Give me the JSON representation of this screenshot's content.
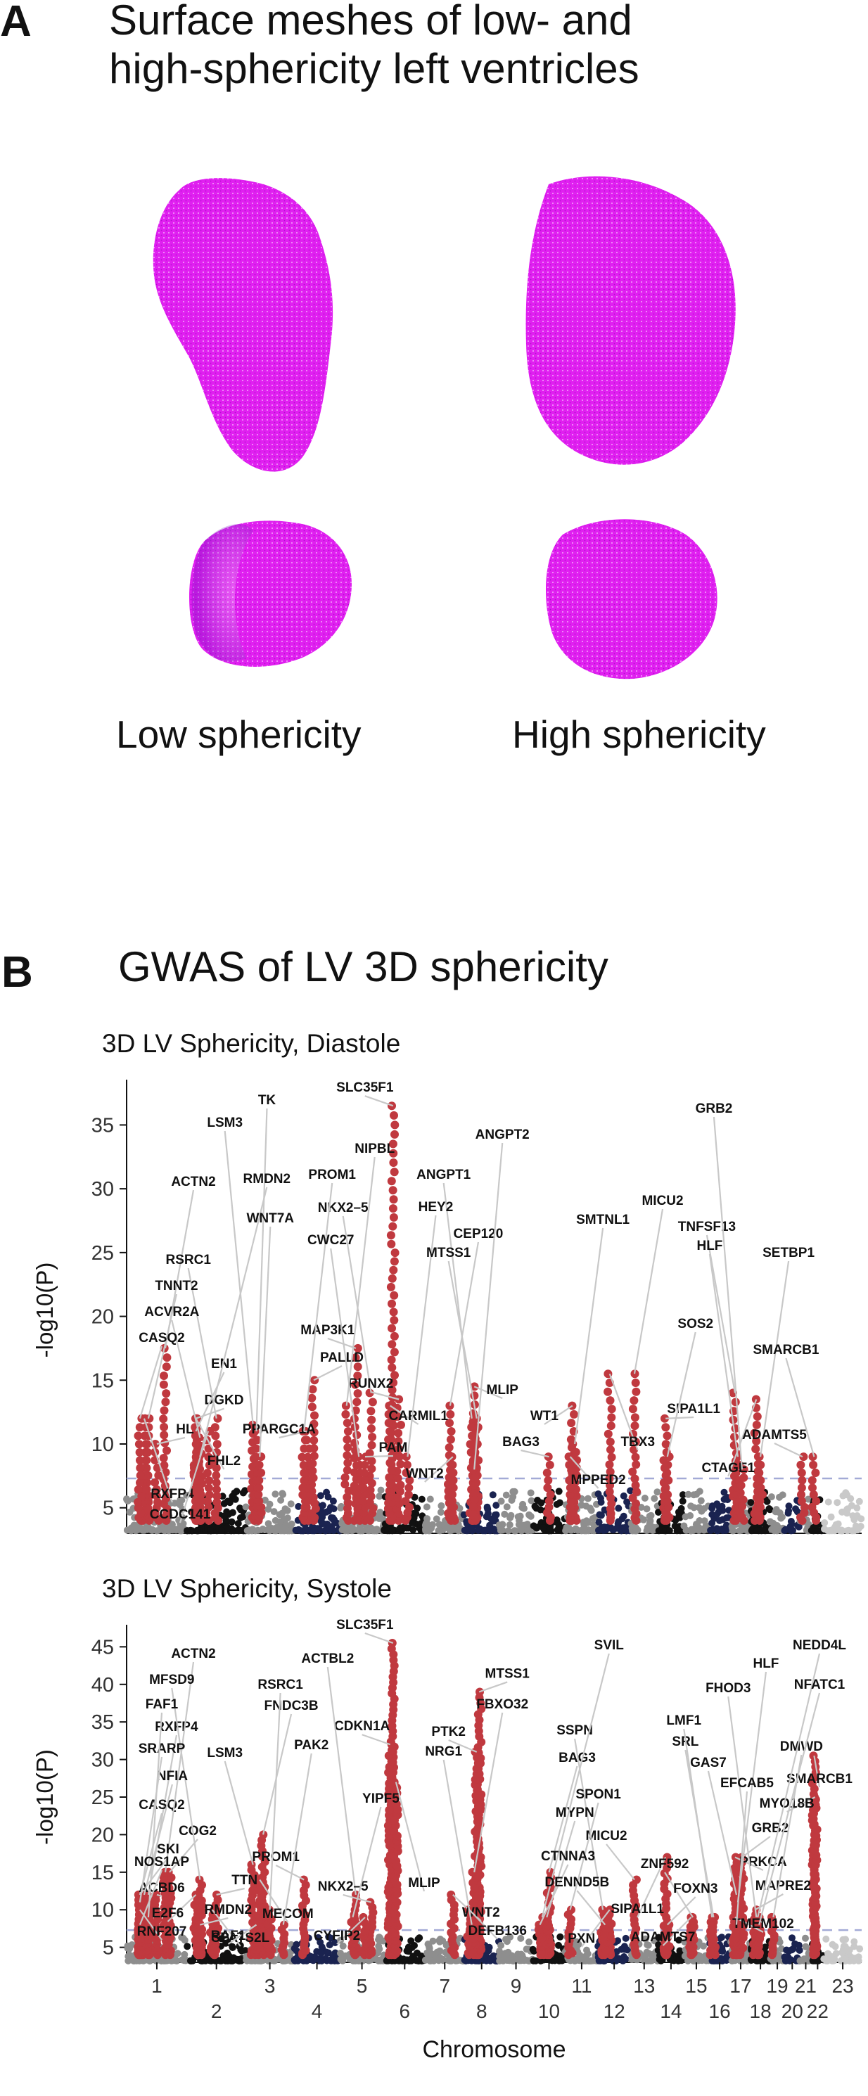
{
  "panel_a": {
    "letter": "A",
    "title_line1": "Surface meshes of low- and",
    "title_line2": "high-sphericity left ventricles",
    "caption_low": "Low sphericity",
    "caption_high": "High sphericity",
    "mesh_color": "#e020f0"
  },
  "panel_b": {
    "letter": "B",
    "title": "GWAS of LV 3D sphericity"
  },
  "colors": {
    "gray": "#8e8e8e",
    "black": "#111111",
    "navy": "#1a2350",
    "lightgray": "#c9c9c9",
    "hit": "#c0393f",
    "threshold": "#a3aad6",
    "leader": "#c8c8c8"
  },
  "chart_data": [
    {
      "type": "scatter",
      "subtype": "manhattan",
      "title": "3D LV Sphericity, Diastole",
      "xlabel": "",
      "ylabel": "-log10(P)",
      "ylim": [
        3,
        38
      ],
      "yticks": [
        5,
        10,
        15,
        20,
        25,
        30,
        35
      ],
      "threshold": 7.3,
      "chromosome_tick_labels": [],
      "peaks": [
        {
          "gene": "SLC35F1",
          "chr": 6.1,
          "logp": 36.5
        },
        {
          "gene": "DGKD",
          "chr": 2.0,
          "logp": 12.0
        },
        {
          "gene": "MAP3K1",
          "chr": 5.3,
          "logp": 17.5
        },
        {
          "gene": "ACTN2",
          "chr": 1.7,
          "logp": 17.5
        },
        {
          "gene": "NKX2–5",
          "chr": 5.8,
          "logp": 14.0
        },
        {
          "gene": "CEP120",
          "chr": 7.7,
          "logp": 13.0
        },
        {
          "gene": "RSRC1",
          "chr": 2.5,
          "logp": 12.0
        },
        {
          "gene": "TNNT2",
          "chr": 1.3,
          "logp": 12.0
        },
        {
          "gene": "ACVR2A",
          "chr": 2.1,
          "logp": 10.5
        },
        {
          "gene": "PALLD",
          "chr": 4.4,
          "logp": 15.0
        },
        {
          "gene": "RUNX2",
          "chr": 6.3,
          "logp": 13.5
        },
        {
          "gene": "MLIP",
          "chr": 8.2,
          "logp": 14.5
        },
        {
          "gene": "WT1",
          "chr": 11.1,
          "logp": 13.0
        },
        {
          "gene": "TBX3",
          "chr": 12.3,
          "logp": 15.5
        },
        {
          "gene": "CTAGE1",
          "chr": 18.2,
          "logp": 13.5
        },
        {
          "gene": "RXFP4",
          "chr": 1.2,
          "logp": 12.0
        },
        {
          "gene": "LSM3",
          "chr": 3.0,
          "logp": 11.5
        },
        {
          "gene": "NIPBL",
          "chr": 5.0,
          "logp": 13.0
        },
        {
          "gene": "ANGPT1",
          "chr": 8.1,
          "logp": 12.0
        },
        {
          "gene": "MICU2",
          "chr": 13.0,
          "logp": 15.5
        },
        {
          "gene": "TNFSF13",
          "chr": 17.1,
          "logp": 14.0
        },
        {
          "gene": "SETBP1",
          "chr": 18.5,
          "logp": 9.0
        },
        {
          "gene": "CASQ2",
          "chr": 1.1,
          "logp": 12.0
        },
        {
          "gene": "EN1",
          "chr": 2.0,
          "logp": 11.0
        },
        {
          "gene": "PPARGC1A",
          "chr": 4.2,
          "logp": 11.0
        },
        {
          "gene": "CARMIL1",
          "chr": 6.0,
          "logp": 13.0
        },
        {
          "gene": "BAG3",
          "chr": 10.5,
          "logp": 9.0
        },
        {
          "gene": "SIPA1L1",
          "chr": 14.2,
          "logp": 12.0
        },
        {
          "gene": "ADAMTS5",
          "chr": 21.1,
          "logp": 9.0
        },
        {
          "gene": "FHL2",
          "chr": 2.0,
          "logp": 12.0
        },
        {
          "gene": "TK",
          "chr": 3.1,
          "logp": 11.0
        },
        {
          "gene": "PROM1",
          "chr": 4.1,
          "logp": 11.0
        },
        {
          "gene": "CWC27",
          "chr": 5.4,
          "logp": 9.0
        },
        {
          "gene": "HEY2",
          "chr": 6.6,
          "logp": 9.0
        },
        {
          "gene": "MTSS1",
          "chr": 8.3,
          "logp": 12.0
        },
        {
          "gene": "SMTNL1",
          "chr": 11.2,
          "logp": 10.0
        },
        {
          "gene": "HLF",
          "chr": 17.3,
          "logp": 9.0
        },
        {
          "gene": "HL",
          "chr": 1.5,
          "logp": 10.0
        },
        {
          "gene": "CCDC141",
          "chr": 2.3,
          "logp": 11.0
        },
        {
          "gene": "SOS2",
          "chr": 14.3,
          "logp": 9.0
        },
        {
          "gene": "SMARCB1",
          "chr": 22.1,
          "logp": 9.0
        },
        {
          "gene": "RMDN2",
          "chr": 2.1,
          "logp": 9.0
        },
        {
          "gene": "WNT7A",
          "chr": 3.2,
          "logp": 9.0
        },
        {
          "gene": "PAM",
          "chr": 5.6,
          "logp": 9.0
        },
        {
          "gene": "WNT2",
          "chr": 7.8,
          "logp": 9.0
        },
        {
          "gene": "MPPED2",
          "chr": 11.0,
          "logp": 9.0
        },
        {
          "gene": "GRB2",
          "chr": 17.6,
          "logp": 8.0
        },
        {
          "gene": "ANGPT2",
          "chr": 8.2,
          "logp": 8.0
        }
      ]
    },
    {
      "type": "scatter",
      "subtype": "manhattan",
      "title": "3D LV Sphericity, Systole",
      "xlabel": "Chromosome",
      "ylabel": "-log10(P)",
      "ylim": [
        3,
        47
      ],
      "yticks": [
        5,
        10,
        15,
        20,
        25,
        30,
        35,
        40,
        45
      ],
      "threshold": 7.3,
      "chromosome_tick_labels": [
        "1",
        "2",
        "3",
        "4",
        "5",
        "6",
        "7",
        "8",
        "9",
        "10",
        "11",
        "12",
        "13",
        "14",
        "15",
        "16",
        "17",
        "18",
        "19",
        "20",
        "21",
        "22",
        "23"
      ],
      "peaks": [
        {
          "gene": "SLC35F1",
          "chr": 6.1,
          "logp": 45.5
        },
        {
          "gene": "MTSS1",
          "chr": 8.4,
          "logp": 39.0
        },
        {
          "gene": "CDKN1A",
          "chr": 6.0,
          "logp": 32.0
        },
        {
          "gene": "RXFP4",
          "chr": 1.3,
          "logp": 12.0
        },
        {
          "gene": "LSM3",
          "chr": 3.0,
          "logp": 16.0
        },
        {
          "gene": "SMARCB1",
          "chr": 22.1,
          "logp": 30.5
        },
        {
          "gene": "CASQ2",
          "chr": 1.1,
          "logp": 12.0
        },
        {
          "gene": "COG2",
          "chr": 1.8,
          "logp": 15.0
        },
        {
          "gene": "PROM1",
          "chr": 4.1,
          "logp": 14.0
        },
        {
          "gene": "MLIP",
          "chr": 6.2,
          "logp": 27.0
        },
        {
          "gene": "SIPA1L1",
          "chr": 14.2,
          "logp": 17.0
        },
        {
          "gene": "ACTN2",
          "chr": 1.7,
          "logp": 15.0
        },
        {
          "gene": "MFSD9",
          "chr": 2.1,
          "logp": 14.0
        },
        {
          "gene": "FNDC3B",
          "chr": 3.3,
          "logp": 20.0
        },
        {
          "gene": "PTK2",
          "chr": 8.3,
          "logp": 31.0
        },
        {
          "gene": "BAG3",
          "chr": 10.5,
          "logp": 15.0
        },
        {
          "gene": "MYO18B",
          "chr": 22.2,
          "logp": 25.0
        },
        {
          "gene": "SKI",
          "chr": 1.1,
          "logp": 12.0
        },
        {
          "gene": "MICU2",
          "chr": 13.0,
          "logp": 14.0
        },
        {
          "gene": "PRKCA",
          "chr": 17.1,
          "logp": 17.0
        },
        {
          "gene": "ACBD6",
          "chr": 1.5,
          "logp": 12.0
        },
        {
          "gene": "MECOM",
          "chr": 3.2,
          "logp": 14.0
        },
        {
          "gene": "ACTBL2",
          "chr": 5.3,
          "logp": 12.0
        },
        {
          "gene": "FBXO32",
          "chr": 8.2,
          "logp": 15.0
        },
        {
          "gene": "SSPN",
          "chr": 12.0,
          "logp": 10.0
        },
        {
          "gene": "NFIA",
          "chr": 1.2,
          "logp": 12.0
        },
        {
          "gene": "GAS7",
          "chr": 17.2,
          "logp": 12.0
        },
        {
          "gene": "GRB2",
          "chr": 17.6,
          "logp": 17.0
        },
        {
          "gene": "E2F6",
          "chr": 2.0,
          "logp": 12.0
        },
        {
          "gene": "TTN",
          "chr": 2.5,
          "logp": 12.0
        },
        {
          "gene": "NKX2–5",
          "chr": 5.8,
          "logp": 11.0
        },
        {
          "gene": "WNT2",
          "chr": 7.8,
          "logp": 12.0
        },
        {
          "gene": "PXN",
          "chr": 12.3,
          "logp": 10.0
        },
        {
          "gene": "HLF",
          "chr": 17.3,
          "logp": 11.0
        },
        {
          "gene": "SRARP",
          "chr": 1.1,
          "logp": 11.0
        },
        {
          "gene": "SPON1",
          "chr": 11.0,
          "logp": 10.0
        },
        {
          "gene": "SRL",
          "chr": 16.1,
          "logp": 9.0
        },
        {
          "gene": "MAPRE2",
          "chr": 18.1,
          "logp": 10.0
        },
        {
          "gene": "RNF207",
          "chr": 1.1,
          "logp": 10.0
        },
        {
          "gene": "SPATS2L",
          "chr": 2.4,
          "logp": 10.0
        },
        {
          "gene": "RSRC1",
          "chr": 3.5,
          "logp": 10.0
        },
        {
          "gene": "DEFB136",
          "chr": 8.0,
          "logp": 10.0
        },
        {
          "gene": "ADAMTS7",
          "chr": 15.2,
          "logp": 9.0
        },
        {
          "gene": "TMEM102",
          "chr": 17.1,
          "logp": 9.0
        },
        {
          "gene": "FHOD3",
          "chr": 18.2,
          "logp": 9.0
        },
        {
          "gene": "MYPN",
          "chr": 10.4,
          "logp": 9.0
        },
        {
          "gene": "LMF1",
          "chr": 16.0,
          "logp": 9.0
        },
        {
          "gene": "DMWD",
          "chr": 19.1,
          "logp": 9.0
        },
        {
          "gene": "FAF1",
          "chr": 1.3,
          "logp": 9.0
        },
        {
          "gene": "YIPF5",
          "chr": 5.2,
          "logp": 9.0
        },
        {
          "gene": "ZNF592",
          "chr": 15.3,
          "logp": 9.0
        },
        {
          "gene": "NEDD4L",
          "chr": 18.3,
          "logp": 9.0
        },
        {
          "gene": "CYFIP2",
          "chr": 5.6,
          "logp": 9.0
        },
        {
          "gene": "SVIL",
          "chr": 10.2,
          "logp": 9.0
        },
        {
          "gene": "NOS1AP",
          "chr": 1.1,
          "logp": 8.0
        },
        {
          "gene": "RMDN2",
          "chr": 2.1,
          "logp": 8.0
        },
        {
          "gene": "RAF1",
          "chr": 3.1,
          "logp": 8.0
        },
        {
          "gene": "PAK2",
          "chr": 3.9,
          "logp": 8.0
        },
        {
          "gene": "NRG1",
          "chr": 8.1,
          "logp": 8.0
        },
        {
          "gene": "CTNNA3",
          "chr": 10.1,
          "logp": 8.0
        },
        {
          "gene": "DENND5B",
          "chr": 12.1,
          "logp": 8.0
        },
        {
          "gene": "FOXN3",
          "chr": 14.3,
          "logp": 8.0
        },
        {
          "gene": "EFCAB5",
          "chr": 17.2,
          "logp": 8.0
        },
        {
          "gene": "NFATC1",
          "chr": 18.4,
          "logp": 8.0
        }
      ]
    }
  ]
}
